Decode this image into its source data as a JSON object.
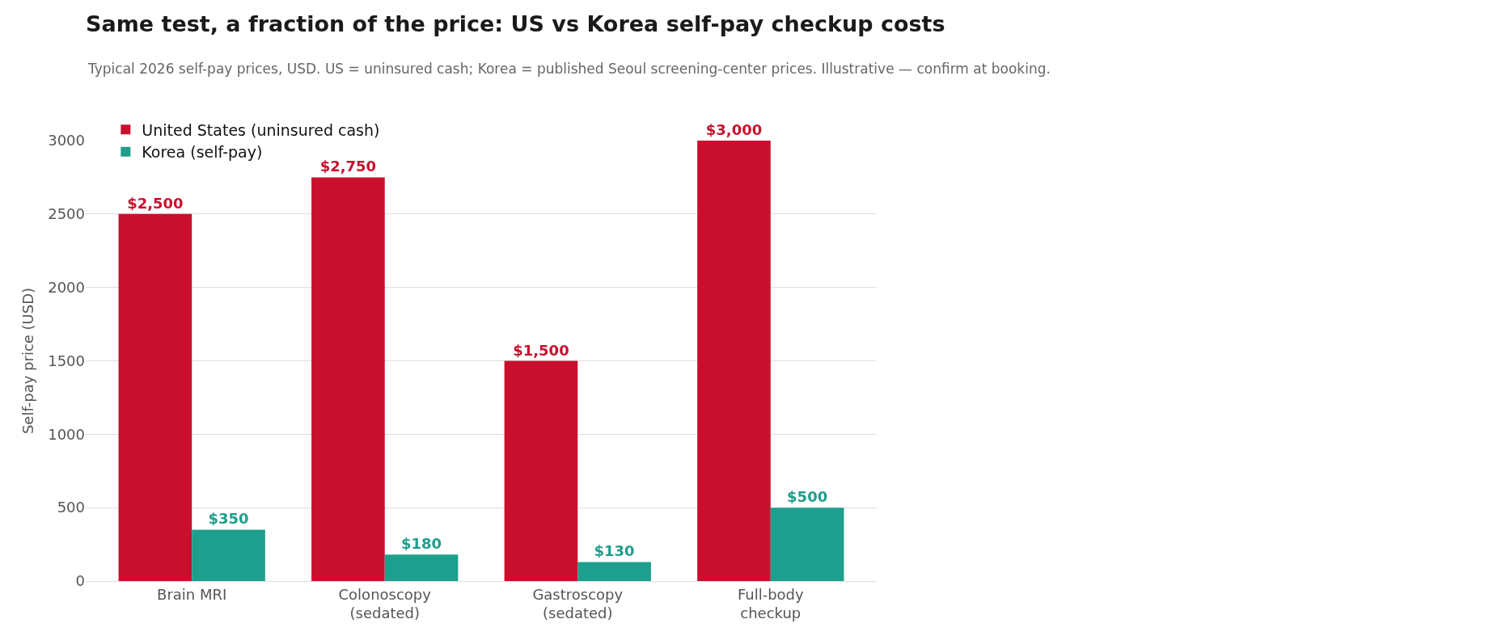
{
  "chart_data": {
    "type": "bar",
    "title": "Same test, a fraction of the price: US vs Korea self-pay checkup costs",
    "subtitle": "Typical 2026 self-pay prices, USD. US = uninsured cash; Korea = published Seoul screening-center prices. Illustrative — confirm at booking.",
    "ylabel": "Self-pay price (USD)",
    "categories": [
      "Brain MRI",
      "Colonoscopy (sedated)",
      "Gastroscopy (sedated)",
      "Full-body checkup"
    ],
    "series": [
      {
        "name": "United States (uninsured cash)",
        "color": "#c8102e",
        "values": [
          2500,
          2750,
          1500,
          3000
        ],
        "value_labels": [
          "$2,500",
          "$2,750",
          "$1,500",
          "$3,000"
        ]
      },
      {
        "name": "Korea (self-pay)",
        "color": "#1e9e8c",
        "values": [
          350,
          180,
          130,
          500
        ],
        "value_labels": [
          "$350",
          "$180",
          "$130",
          "$500"
        ]
      }
    ],
    "ylim": [
      0,
      3000
    ],
    "yticks": [
      0,
      500,
      1000,
      1500,
      2000,
      2500,
      3000
    ],
    "grid": "y",
    "legend": "top left"
  }
}
